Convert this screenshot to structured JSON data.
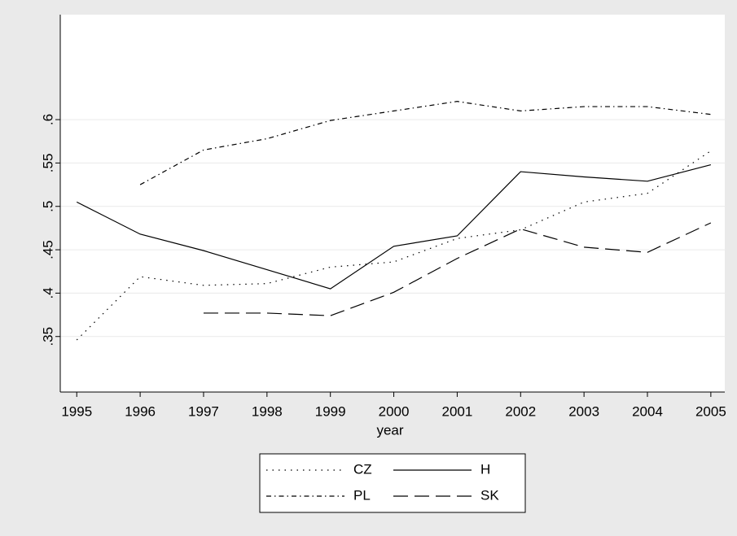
{
  "chart_data": {
    "type": "line",
    "x": [
      1995,
      1996,
      1997,
      1998,
      1999,
      2000,
      2001,
      2002,
      2003,
      2004,
      2005
    ],
    "xlabel": "year",
    "xlim": [
      1994.74,
      2005.22
    ],
    "xticks": [
      1995,
      1996,
      1997,
      1998,
      1999,
      2000,
      2001,
      2002,
      2003,
      2004,
      2005
    ],
    "ylim": [
      0.286,
      0.721
    ],
    "yticks": [
      {
        "value": 0.35,
        "label": ".35"
      },
      {
        "value": 0.4,
        "label": ".4"
      },
      {
        "value": 0.45,
        "label": ".45"
      },
      {
        "value": 0.5,
        "label": ".5"
      },
      {
        "value": 0.55,
        "label": ".55"
      },
      {
        "value": 0.6,
        "label": ".6"
      }
    ],
    "grid": true,
    "legend": "bottom",
    "series": [
      {
        "name": "CZ",
        "color": "#000000",
        "linestyle": "dotted",
        "values": [
          0.346,
          0.419,
          0.409,
          0.411,
          0.43,
          0.436,
          0.463,
          0.473,
          0.505,
          0.515,
          0.564
        ]
      },
      {
        "name": "H",
        "color": "#000000",
        "linestyle": "solid",
        "values": [
          0.505,
          0.468,
          0.449,
          0.427,
          0.405,
          0.454,
          0.466,
          0.54,
          0.534,
          0.529,
          0.548
        ]
      },
      {
        "name": "PL",
        "color": "#000000",
        "linestyle": "dashdot",
        "values": [
          null,
          0.525,
          0.565,
          0.578,
          0.599,
          0.61,
          0.621,
          0.61,
          0.615,
          0.615,
          0.606
        ]
      },
      {
        "name": "SK",
        "color": "#000000",
        "linestyle": "dashed",
        "values": [
          null,
          null,
          0.377,
          0.377,
          0.374,
          0.401,
          0.44,
          0.474,
          0.453,
          0.447,
          0.481
        ]
      }
    ]
  }
}
